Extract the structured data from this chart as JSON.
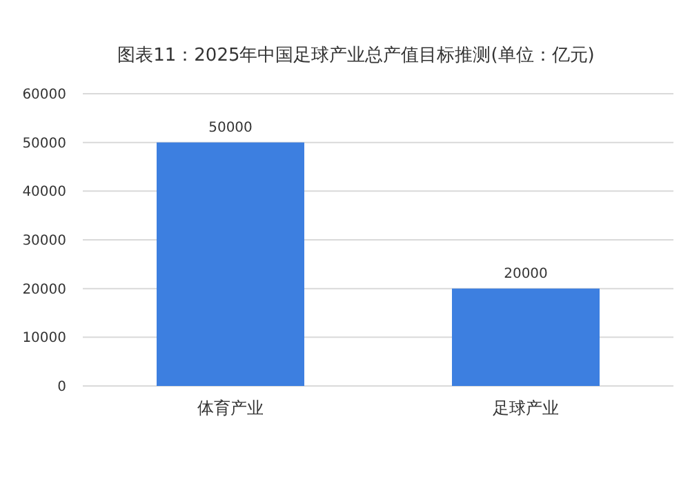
{
  "chart_data": {
    "type": "bar",
    "title": "图表11：2025年中国足球产业总产值目标推测(单位：亿元)",
    "categories": [
      "体育产业",
      "足球产业"
    ],
    "values": [
      50000,
      20000
    ],
    "color": "#3d7fe0",
    "ylim": [
      0,
      60000
    ],
    "yticks": [
      0,
      10000,
      20000,
      30000,
      40000,
      50000,
      60000
    ],
    "grid": "y",
    "data_labels": true
  }
}
